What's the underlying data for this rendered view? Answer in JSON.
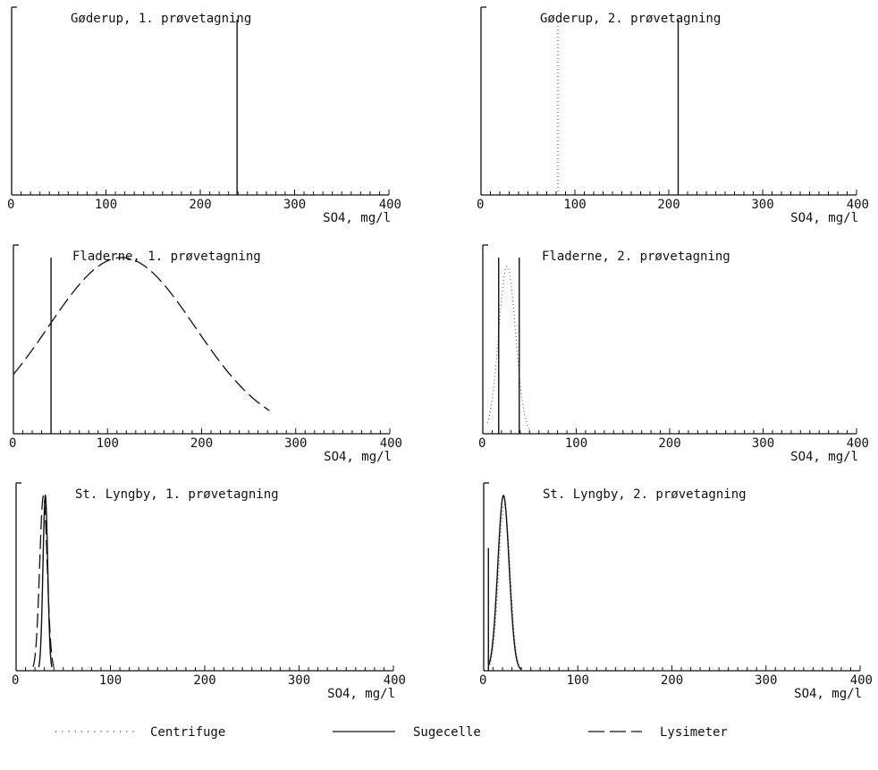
{
  "chart_data": [
    {
      "type": "line",
      "title": "Gøderup, 1. prøvetagning",
      "xlabel": "SO4, mg/l",
      "xlim": [
        0,
        400
      ],
      "x_ticks": [
        "0",
        "100",
        "200",
        "300",
        "400"
      ],
      "series": [
        {
          "name": "Sugecelle",
          "kind": "spike",
          "x": 239,
          "height": 1.0
        }
      ]
    },
    {
      "type": "line",
      "title": "Gøderup, 2. prøvetagning",
      "xlabel": "SO4, mg/l",
      "xlim": [
        0,
        400
      ],
      "x_ticks": [
        "0",
        "100",
        "200",
        "300",
        "400"
      ],
      "series": [
        {
          "name": "Centrifuge",
          "kind": "spike",
          "x": 82,
          "height": 1.0
        },
        {
          "name": "Sugecelle",
          "kind": "spike",
          "x": 210,
          "height": 1.0
        }
      ]
    },
    {
      "type": "line",
      "title": "Fladerne, 1. prøvetagning",
      "xlabel": "SO4, mg/l",
      "xlim": [
        0,
        400
      ],
      "x_ticks": [
        "0",
        "100",
        "200",
        "300",
        "400"
      ],
      "series": [
        {
          "name": "Sugecelle",
          "kind": "spike",
          "x": 40,
          "height": 1.0
        },
        {
          "name": "Lysimeter",
          "kind": "gaussian",
          "mean": 115,
          "sd": 78,
          "height": 1.0,
          "range": [
            0,
            272
          ]
        }
      ]
    },
    {
      "type": "line",
      "title": "Fladerne, 2. prøvetagning",
      "xlabel": "SO4, mg/l",
      "xlim": [
        0,
        400
      ],
      "x_ticks": [
        "0",
        "100",
        "200",
        "300",
        "400"
      ],
      "series": [
        {
          "name": "Centrifuge",
          "kind": "gaussian",
          "mean": 26,
          "sd": 9,
          "height": 0.95,
          "range": [
            5,
            50
          ]
        },
        {
          "name": "Sugecelle",
          "kind": "spike",
          "x": 17,
          "height": 1.0
        },
        {
          "name": "Sugecelle",
          "kind": "spike",
          "x": 39,
          "height": 1.0
        }
      ]
    },
    {
      "type": "line",
      "title": "St. Lyngby, 1. prøvetagning",
      "xlabel": "SO4, mg/l",
      "xlim": [
        0,
        400
      ],
      "x_ticks": [
        "0",
        "100",
        "200",
        "300",
        "400"
      ],
      "series": [
        {
          "name": "Sugecelle",
          "kind": "gaussian",
          "mean": 31,
          "sd": 2.5,
          "height": 1.0,
          "range": [
            24,
            38
          ]
        },
        {
          "name": "Lysimeter",
          "kind": "gaussian",
          "mean": 29,
          "sd": 4,
          "height": 1.0,
          "range": [
            18,
            40
          ]
        }
      ]
    },
    {
      "type": "line",
      "title": "St. Lyngby, 2. prøvetagning",
      "xlabel": "SO4, mg/l",
      "xlim": [
        0,
        400
      ],
      "x_ticks": [
        "0",
        "100",
        "200",
        "300",
        "400"
      ],
      "series": [
        {
          "name": "Centrifuge",
          "kind": "gaussian",
          "mean": 22,
          "sd": 6,
          "height": 0.95,
          "range": [
            5,
            40
          ]
        },
        {
          "name": "Sugecelle",
          "kind": "gaussian",
          "mean": 21,
          "sd": 6,
          "height": 1.0,
          "range": [
            5,
            40
          ]
        },
        {
          "name": "Sugecelle",
          "kind": "spike",
          "x": 5,
          "height": 0.7
        }
      ]
    }
  ],
  "legend": {
    "position": "bottom",
    "items": [
      {
        "label": "Centrifuge",
        "style": "dotted"
      },
      {
        "label": "Sugecelle",
        "style": "solid"
      },
      {
        "label": "Lysimeter",
        "style": "dashed"
      }
    ]
  }
}
